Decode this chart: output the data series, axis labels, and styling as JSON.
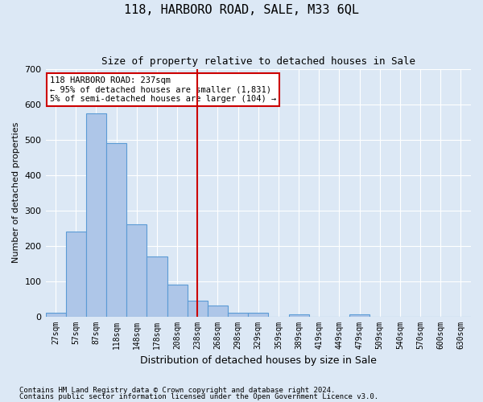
{
  "title": "118, HARBORO ROAD, SALE, M33 6QL",
  "subtitle": "Size of property relative to detached houses in Sale",
  "xlabel": "Distribution of detached houses by size in Sale",
  "ylabel": "Number of detached properties",
  "bin_labels": [
    "27sqm",
    "57sqm",
    "87sqm",
    "118sqm",
    "148sqm",
    "178sqm",
    "208sqm",
    "238sqm",
    "268sqm",
    "298sqm",
    "329sqm",
    "359sqm",
    "389sqm",
    "419sqm",
    "449sqm",
    "479sqm",
    "509sqm",
    "540sqm",
    "570sqm",
    "600sqm",
    "630sqm"
  ],
  "bar_values": [
    10,
    240,
    575,
    490,
    260,
    170,
    90,
    45,
    30,
    10,
    10,
    0,
    5,
    0,
    0,
    5,
    0,
    0,
    0,
    0,
    0
  ],
  "bar_color": "#aec6e8",
  "bar_edge_color": "#5b9bd5",
  "property_line_x": 7.5,
  "property_line_label": "118 HARBORO ROAD: 237sqm",
  "smaller_text": "← 95% of detached houses are smaller (1,831)",
  "larger_text": "5% of semi-detached houses are larger (104) →",
  "annotation_box_color": "#cc0000",
  "vline_color": "#cc0000",
  "footer_line1": "Contains HM Land Registry data © Crown copyright and database right 2024.",
  "footer_line2": "Contains public sector information licensed under the Open Government Licence v3.0.",
  "ylim": [
    0,
    700
  ],
  "yticks": [
    0,
    100,
    200,
    300,
    400,
    500,
    600,
    700
  ],
  "bg_color": "#dce8f5",
  "plot_bg_color": "#dce8f5",
  "grid_color": "#ffffff",
  "title_fontsize": 11,
  "subtitle_fontsize": 9
}
